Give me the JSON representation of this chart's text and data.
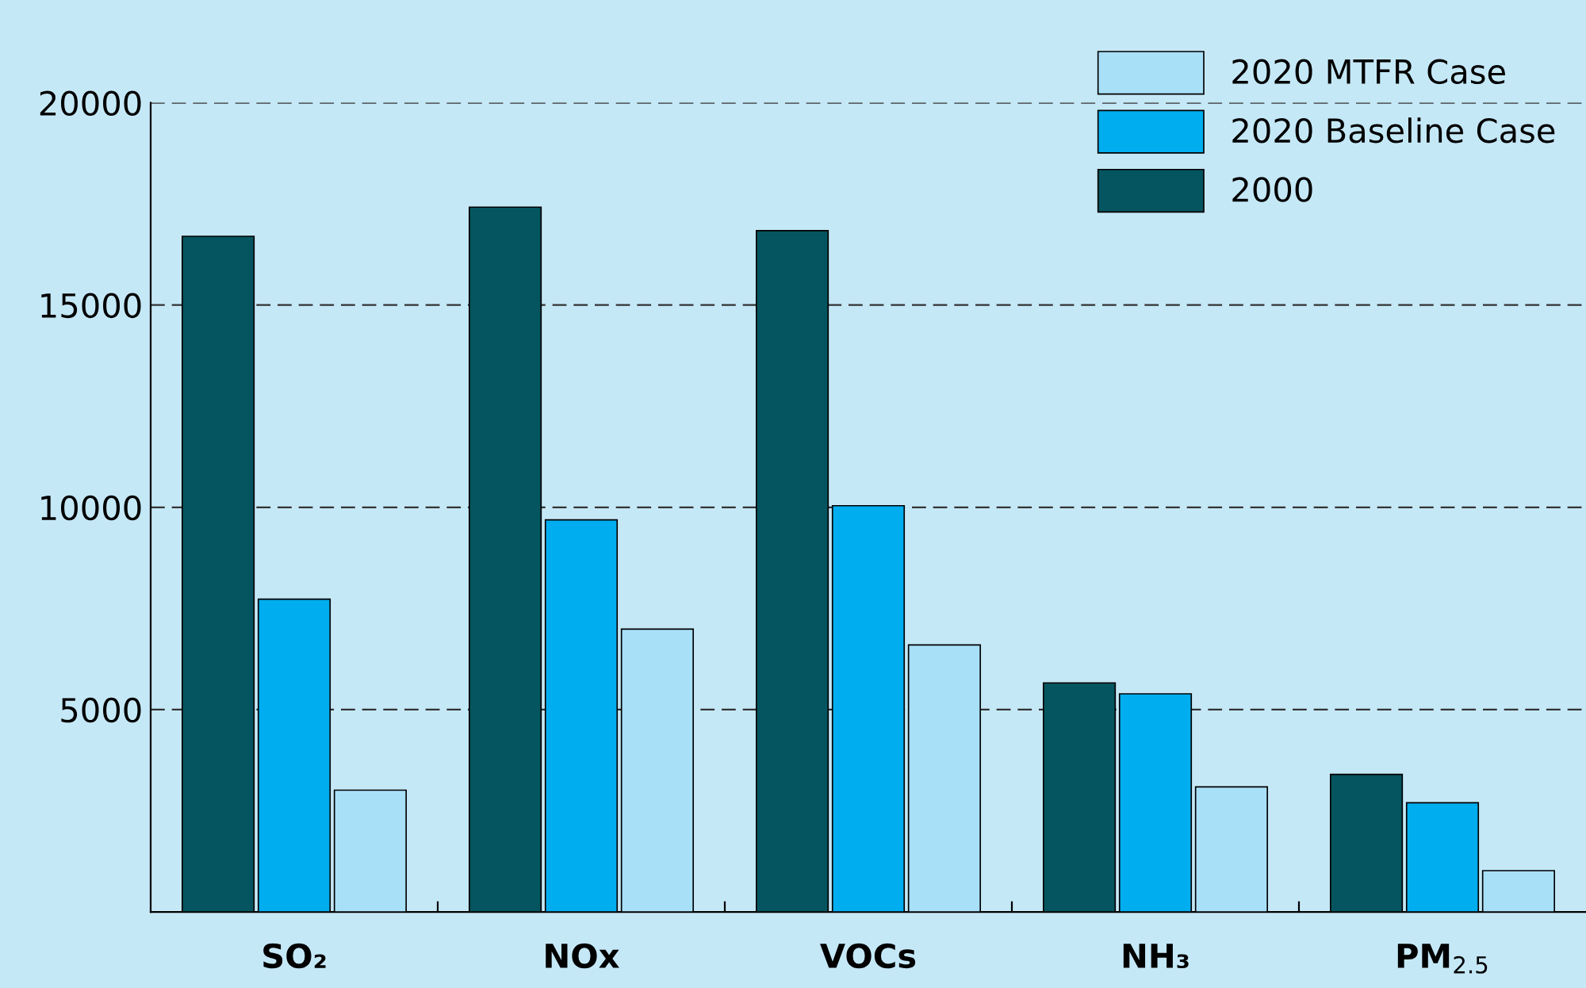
{
  "chart_data": {
    "type": "bar",
    "categories": [
      "SO₂",
      "NOx",
      "VOCs",
      "NH₃",
      "PM$_{2.5}$"
    ],
    "series": [
      {
        "name": "2000",
        "color": "#04555f",
        "values": [
          16700,
          17420,
          16840,
          5660,
          3400
        ]
      },
      {
        "name": "2020 Baseline Case",
        "color": "#00aeef",
        "values": [
          7730,
          9690,
          10040,
          5390,
          2700
        ]
      },
      {
        "name": "2020 MTFR Case",
        "color": "#a8e0f8",
        "values": [
          3010,
          6990,
          6600,
          3090,
          1020
        ]
      }
    ],
    "ylim": [
      0,
      20000
    ],
    "yticks": [
      5000,
      10000,
      15000,
      20000
    ],
    "grid": "y",
    "legend": "top right"
  }
}
